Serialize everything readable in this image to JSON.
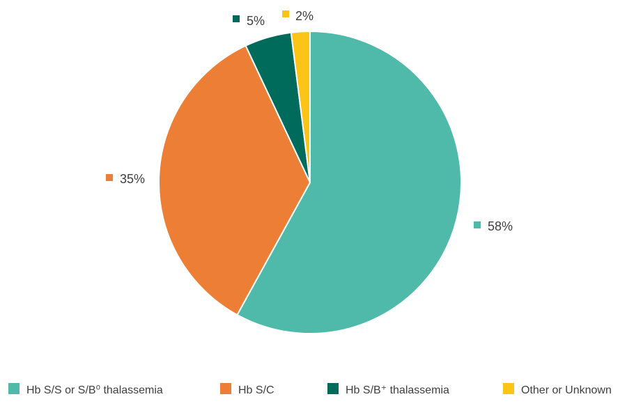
{
  "chart_data": {
    "type": "pie",
    "title": "",
    "slices": [
      {
        "label": "Hb S/S or S/B⁰ thalassemia",
        "value": 58,
        "display": "58%",
        "color": "#4fb9aa"
      },
      {
        "label": "Hb S/C",
        "value": 35,
        "display": "35%",
        "color": "#ec7f35"
      },
      {
        "label": "Hb S/B⁺ thalassemia",
        "value": 5,
        "display": "5%",
        "color": "#006a5b"
      },
      {
        "label": "Other or Unknown",
        "value": 2,
        "display": "2%",
        "color": "#fcc417"
      }
    ],
    "start_angle": "12 o'clock",
    "direction": "clockwise",
    "legend_position": "bottom",
    "data_labels": "outside"
  }
}
